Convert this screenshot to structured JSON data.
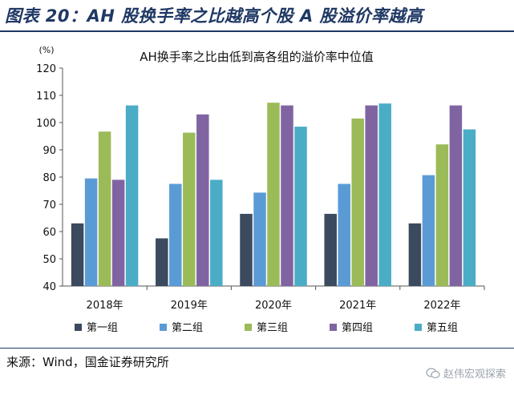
{
  "figure_title": "图表 20：AH 股换手率之比越高个股 A 股溢价率越高",
  "source": "来源：Wind，国金证券研究所",
  "watermark": "赵伟宏观探索",
  "colors": {
    "title": "#1f3864",
    "series": [
      "#3b4a5e",
      "#5b9bd5",
      "#9bbb59",
      "#8064a2",
      "#4bacc6"
    ]
  },
  "chart_data": {
    "type": "bar",
    "title": "AH换手率之比由低到高各组的溢价率中位值",
    "ylabel": "(%)",
    "xlabel": "",
    "ylim": [
      40,
      120
    ],
    "yticks": [
      40,
      50,
      60,
      70,
      80,
      90,
      100,
      110,
      120
    ],
    "grid": false,
    "legend_position": "bottom",
    "categories": [
      "2018年",
      "2019年",
      "2020年",
      "2021年",
      "2022年"
    ],
    "series": [
      {
        "name": "第一组",
        "values": [
          63,
          57.5,
          66.5,
          66.5,
          63
        ]
      },
      {
        "name": "第二组",
        "values": [
          79.5,
          77.5,
          74.3,
          77.5,
          80.7
        ]
      },
      {
        "name": "第三组",
        "values": [
          96.7,
          96.3,
          107.3,
          101.5,
          92
        ]
      },
      {
        "name": "第四组",
        "values": [
          79,
          103,
          106.3,
          106.3,
          106.3
        ]
      },
      {
        "name": "第五组",
        "values": [
          106.3,
          79,
          98.5,
          107,
          97.5
        ]
      }
    ]
  }
}
